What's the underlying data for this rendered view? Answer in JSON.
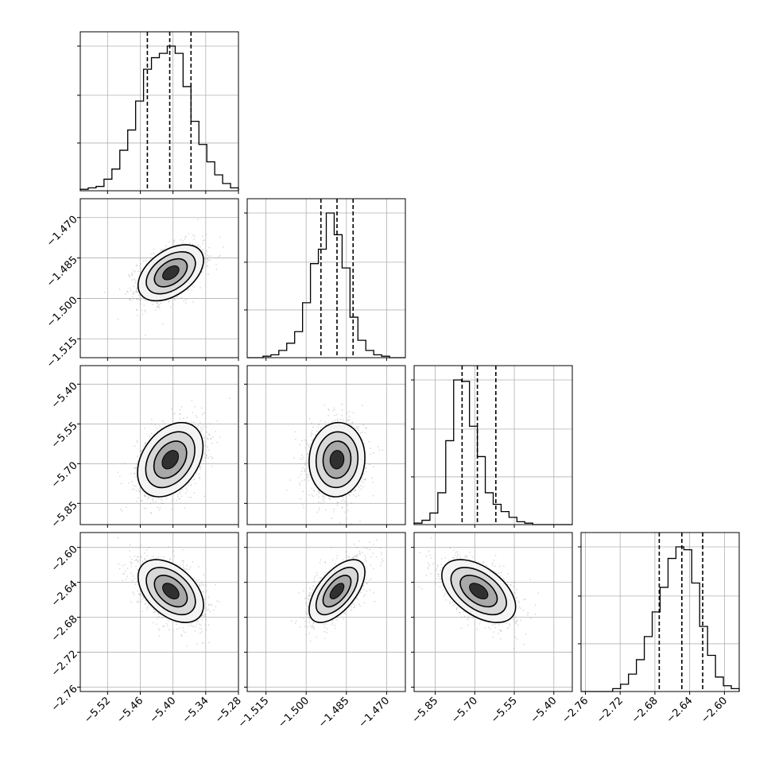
{
  "chart_data": {
    "type": "corner",
    "grid": true,
    "parameters": [
      {
        "ticks": [
          -5.52,
          -5.46,
          -5.4,
          -5.34,
          -5.28
        ],
        "tick_labels": [
          "−5.52",
          "−5.46",
          "−5.40",
          "−5.34",
          "−5.28"
        ],
        "range": [
          -5.57,
          -5.28
        ],
        "quantiles": [
          -5.447,
          -5.406,
          -5.367
        ]
      },
      {
        "ticks": [
          -1.515,
          -1.5,
          -1.485,
          -1.47
        ],
        "tick_labels": [
          "−1.515",
          "−1.500",
          "−1.485",
          "−1.470"
        ],
        "range": [
          -1.522,
          -1.463
        ],
        "quantiles": [
          -1.4945,
          -1.4885,
          -1.4825
        ]
      },
      {
        "ticks": [
          -5.85,
          -5.7,
          -5.55,
          -5.4
        ],
        "tick_labels": [
          "−5.85",
          "−5.70",
          "−5.55",
          "−5.40"
        ],
        "range": [
          -5.93,
          -5.33
        ],
        "quantiles": [
          -5.748,
          -5.69,
          -5.62
        ]
      },
      {
        "ticks": [
          -2.76,
          -2.72,
          -2.68,
          -2.64,
          -2.6
        ],
        "tick_labels": [
          "−2.76",
          "−2.72",
          "−2.68",
          "−2.64",
          "−2.60"
        ],
        "range": [
          -2.765,
          -2.583
        ],
        "quantiles": [
          -2.675,
          -2.649,
          -2.625
        ]
      }
    ],
    "histograms": [
      {
        "edges_start": -5.57,
        "bin_width": 0.0145,
        "counts": [
          1,
          2,
          3,
          8,
          15,
          28,
          42,
          62,
          84,
          92,
          95,
          100,
          95,
          72,
          48,
          32,
          20,
          11,
          5,
          2
        ]
      },
      {
        "edges_start": -1.522,
        "bin_width": 0.00295,
        "counts": [
          0,
          0,
          1,
          2,
          5,
          10,
          18,
          38,
          65,
          75,
          100,
          85,
          62,
          28,
          12,
          5,
          2,
          1,
          0,
          0
        ]
      },
      {
        "edges_start": -5.93,
        "bin_width": 0.03,
        "counts": [
          1,
          3,
          8,
          22,
          58,
          100,
          99,
          68,
          47,
          22,
          14,
          9,
          5,
          2,
          1,
          0,
          0,
          0,
          0,
          0
        ]
      },
      {
        "edges_start": -2.765,
        "bin_width": 0.0091,
        "counts": [
          0,
          0,
          0,
          0,
          2,
          5,
          12,
          22,
          38,
          55,
          72,
          92,
          100,
          98,
          75,
          45,
          25,
          10,
          4,
          2
        ]
      }
    ],
    "pairs": [
      {
        "row": 1,
        "col": 0,
        "center": [
          -5.404,
          -1.4905
        ],
        "sd": [
          0.03,
          0.0052
        ],
        "rho": 0.45
      },
      {
        "row": 2,
        "col": 0,
        "center": [
          -5.405,
          -5.685
        ],
        "sd": [
          0.03,
          0.07
        ],
        "rho": 0.35
      },
      {
        "row": 2,
        "col": 1,
        "center": [
          -1.4885,
          -5.685
        ],
        "sd": [
          0.0052,
          0.07
        ],
        "rho": 0.05
      },
      {
        "row": 3,
        "col": 0,
        "center": [
          -5.404,
          -2.65
        ],
        "sd": [
          0.03,
          0.018
        ],
        "rho": -0.45
      },
      {
        "row": 3,
        "col": 1,
        "center": [
          -1.4885,
          -2.65
        ],
        "sd": [
          0.0052,
          0.018
        ],
        "rho": 0.6
      },
      {
        "row": 3,
        "col": 2,
        "center": [
          -5.685,
          -2.65
        ],
        "sd": [
          0.07,
          0.018
        ],
        "rho": -0.5
      }
    ]
  }
}
